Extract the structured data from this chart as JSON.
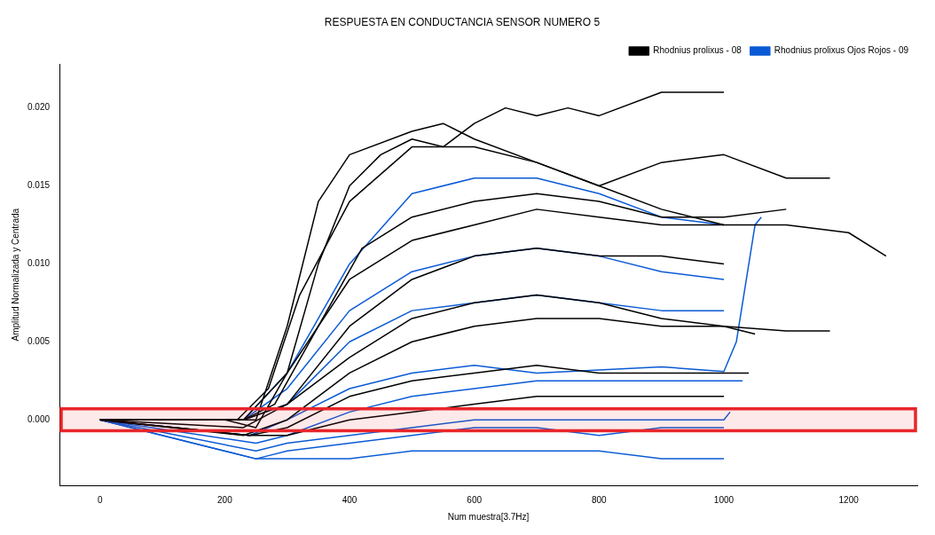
{
  "chart_data": {
    "type": "line",
    "title": "RESPUESTA EN CONDUCTANCIA SENSOR NUMERO 5",
    "xlabel": "Num muestra[3.7Hz]",
    "ylabel": "Amplitud Normalizada y Centrada",
    "xlim": [
      -65,
      1310
    ],
    "xticks": [
      0,
      200,
      400,
      600,
      800,
      1000,
      1200
    ],
    "ylim": [
      -0.0042,
      0.0228
    ],
    "yticks": [
      {
        "value": 0,
        "label": "0.000"
      },
      0.005,
      {
        "value": 0.01,
        "label": "0.010"
      },
      0.015,
      {
        "value": 0.02,
        "label": "0.020"
      }
    ],
    "legend": "top right",
    "grid": false,
    "marker": "none",
    "line_style": "solid",
    "bands": [
      {
        "axis": "y",
        "from": -0.0007,
        "to": 0.0007,
        "color": "#e8262a"
      }
    ],
    "series": [
      {
        "name": "Rhodnius prolixus - 08",
        "color": "#000000",
        "x": [
          0,
          200,
          250,
          300,
          350,
          400,
          450,
          500,
          550,
          600,
          650,
          700,
          750,
          800,
          900,
          1000
        ],
        "values": [
          0,
          0,
          -0.0005,
          0.003,
          0.01,
          0.015,
          0.017,
          0.018,
          0.0175,
          0.019,
          0.02,
          0.0195,
          0.02,
          0.0195,
          0.021,
          0.021
        ]
      },
      {
        "color": "#000000",
        "x": [
          0,
          200,
          250,
          300,
          350,
          400,
          500,
          550,
          600,
          700,
          800,
          900,
          1000,
          1100,
          1170
        ],
        "values": [
          0,
          0,
          0,
          0.006,
          0.014,
          0.017,
          0.0185,
          0.019,
          0.018,
          0.0165,
          0.015,
          0.0165,
          0.017,
          0.0155,
          0.0155
        ]
      },
      {
        "color": "#000000",
        "x": [
          0,
          220,
          270,
          320,
          400,
          500,
          600,
          700,
          800,
          900,
          1000,
          1100,
          1200,
          1260
        ],
        "values": [
          0,
          0,
          0.002,
          0.008,
          0.014,
          0.0175,
          0.0175,
          0.0165,
          0.015,
          0.0135,
          0.0125,
          0.0125,
          0.012,
          0.0105
        ]
      },
      {
        "color": "#000000",
        "x": [
          0,
          230,
          280,
          350,
          420,
          500,
          600,
          700,
          800,
          900,
          1000,
          1100
        ],
        "values": [
          0,
          0,
          0.001,
          0.006,
          0.011,
          0.013,
          0.014,
          0.0145,
          0.014,
          0.013,
          0.013,
          0.0135
        ]
      },
      {
        "color": "#000000",
        "x": [
          0,
          230,
          300,
          400,
          500,
          600,
          700,
          800,
          900,
          1000
        ],
        "values": [
          0,
          0,
          0.003,
          0.009,
          0.0115,
          0.0125,
          0.0135,
          0.013,
          0.0125,
          0.0125
        ]
      },
      {
        "color": "#000000",
        "x": [
          0,
          230,
          300,
          400,
          500,
          600,
          700,
          800,
          900,
          1000
        ],
        "values": [
          0,
          0,
          0.001,
          0.006,
          0.009,
          0.0105,
          0.011,
          0.0105,
          0.0105,
          0.01
        ]
      },
      {
        "color": "#000000",
        "x": [
          0,
          230,
          300,
          400,
          500,
          600,
          700,
          800,
          900,
          1000,
          1100,
          1170
        ],
        "values": [
          0,
          -0.0005,
          0.001,
          0.004,
          0.0065,
          0.0075,
          0.008,
          0.0075,
          0.0065,
          0.006,
          0.0057,
          0.0057
        ]
      },
      {
        "color": "#000000",
        "x": [
          0,
          230,
          300,
          400,
          500,
          600,
          700,
          800,
          900,
          1000,
          1050
        ],
        "values": [
          0,
          -0.001,
          0,
          0.003,
          0.005,
          0.006,
          0.0065,
          0.0065,
          0.006,
          0.006,
          0.0055
        ]
      },
      {
        "color": "#000000",
        "x": [
          0,
          240,
          300,
          400,
          500,
          600,
          700,
          800,
          900,
          1000,
          1040
        ],
        "values": [
          0,
          -0.001,
          -0.0005,
          0.0015,
          0.0025,
          0.003,
          0.0035,
          0.003,
          0.003,
          0.003,
          0.003
        ]
      },
      {
        "color": "#000000",
        "x": [
          0,
          240,
          300,
          400,
          500,
          600,
          700,
          800,
          900,
          1000
        ],
        "values": [
          0,
          -0.001,
          -0.001,
          0,
          0.0005,
          0.001,
          0.0015,
          0.0015,
          0.0015,
          0.0015
        ]
      },
      {
        "name": "Rhodnius prolixus Ojos Rojos - 09",
        "color": "#0a5ad6",
        "x": [
          0,
          230,
          300,
          400,
          500,
          600,
          700,
          800,
          900,
          1000
        ],
        "values": [
          0,
          0,
          0.003,
          0.01,
          0.0145,
          0.0155,
          0.0155,
          0.0145,
          0.013,
          0.0125
        ]
      },
      {
        "color": "#0a5ad6",
        "x": [
          0,
          230,
          300,
          400,
          500,
          600,
          700,
          800,
          900,
          1000
        ],
        "values": [
          0,
          0,
          0.002,
          0.007,
          0.0095,
          0.0105,
          0.011,
          0.0105,
          0.0095,
          0.009
        ]
      },
      {
        "color": "#0a5ad6",
        "x": [
          0,
          230,
          300,
          400,
          500,
          600,
          700,
          800,
          900,
          1000
        ],
        "values": [
          0,
          0,
          0.001,
          0.005,
          0.007,
          0.0075,
          0.008,
          0.0075,
          0.007,
          0.007
        ]
      },
      {
        "color": "#0a5ad6",
        "x": [
          0,
          240,
          300,
          400,
          500,
          600,
          700,
          800,
          900,
          1000,
          1020,
          1050,
          1060
        ],
        "values": [
          0,
          -0.001,
          0,
          0.002,
          0.003,
          0.0035,
          0.003,
          0.0032,
          0.0034,
          0.0031,
          0.005,
          0.0125,
          0.013
        ]
      },
      {
        "color": "#0a5ad6",
        "x": [
          0,
          250,
          300,
          400,
          500,
          600,
          700,
          800,
          900,
          1000,
          1030
        ],
        "values": [
          0,
          -0.0015,
          -0.001,
          0.0005,
          0.0015,
          0.002,
          0.0025,
          0.0025,
          0.0025,
          0.0025,
          0.0025
        ]
      },
      {
        "color": "#0a5ad6",
        "x": [
          0,
          250,
          300,
          400,
          500,
          600,
          700,
          800,
          900,
          1000,
          1010
        ],
        "values": [
          0,
          -0.002,
          -0.0015,
          -0.001,
          -0.0005,
          0,
          0,
          0,
          0,
          0,
          0.0005
        ]
      },
      {
        "color": "#0a5ad6",
        "x": [
          0,
          250,
          300,
          400,
          500,
          600,
          700,
          800,
          900,
          1000
        ],
        "values": [
          0,
          -0.0025,
          -0.002,
          -0.0015,
          -0.001,
          -0.0005,
          -0.0005,
          -0.001,
          -0.0005,
          -0.0005
        ]
      },
      {
        "color": "#0a5ad6",
        "x": [
          0,
          250,
          300,
          400,
          500,
          600,
          700,
          800,
          900,
          1000
        ],
        "values": [
          0,
          -0.0025,
          -0.0025,
          -0.0025,
          -0.002,
          -0.002,
          -0.002,
          -0.002,
          -0.0025,
          -0.0025
        ]
      }
    ]
  }
}
